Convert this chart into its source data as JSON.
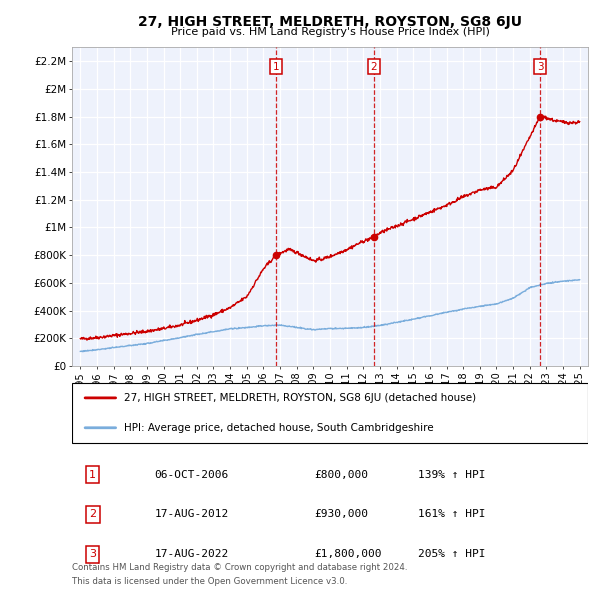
{
  "title": "27, HIGH STREET, MELDRETH, ROYSTON, SG8 6JU",
  "subtitle": "Price paid vs. HM Land Registry's House Price Index (HPI)",
  "red_label": "27, HIGH STREET, MELDRETH, ROYSTON, SG8 6JU (detached house)",
  "blue_label": "HPI: Average price, detached house, South Cambridgeshire",
  "sales": [
    {
      "num": 1,
      "date": "06-OCT-2006",
      "price": 800000,
      "pct": "139%",
      "year": 2006.76
    },
    {
      "num": 2,
      "date": "17-AUG-2012",
      "price": 930000,
      "pct": "161%",
      "year": 2012.63
    },
    {
      "num": 3,
      "date": "17-AUG-2022",
      "price": 1800000,
      "pct": "205%",
      "year": 2022.63
    }
  ],
  "footnote1": "Contains HM Land Registry data © Crown copyright and database right 2024.",
  "footnote2": "This data is licensed under the Open Government Licence v3.0.",
  "ylim": [
    0,
    2300000
  ],
  "xlim": [
    1994.5,
    2025.5
  ],
  "yticks": [
    0,
    200000,
    400000,
    600000,
    800000,
    1000000,
    1200000,
    1400000,
    1600000,
    1800000,
    2000000,
    2200000
  ],
  "ytick_labels": [
    "£0",
    "£200K",
    "£400K",
    "£600K",
    "£800K",
    "£1M",
    "£1.2M",
    "£1.4M",
    "£1.6M",
    "£1.8M",
    "£2M",
    "£2.2M"
  ],
  "bg_color": "#eef2fc",
  "grid_color": "#ffffff",
  "red_color": "#cc0000",
  "blue_color": "#7aaddc",
  "sale_line_color": "#cc0000"
}
